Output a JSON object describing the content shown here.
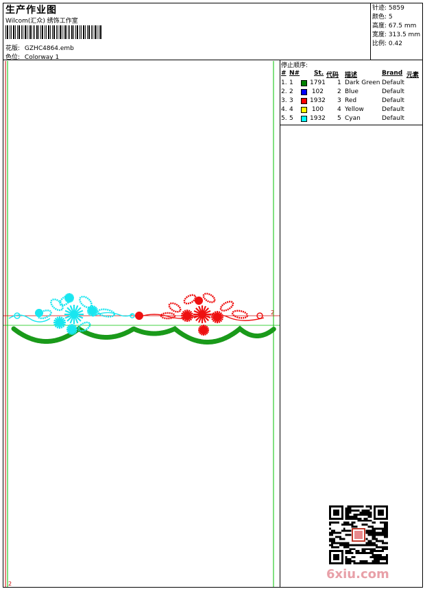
{
  "header": {
    "title": "生产作业图",
    "subtitle": "Wilcom(汇众) 绣饰工作室",
    "design_label": "花版:",
    "design_value": "GZHC4864.emb",
    "colorway_label": "色位:",
    "colorway_value": "Colorway 1"
  },
  "stats": [
    {
      "label": "针迹:",
      "value": "5859"
    },
    {
      "label": "颜色:",
      "value": "5"
    },
    {
      "label": "高度:",
      "value": "67.5 mm"
    },
    {
      "label": "宽度:",
      "value": "313.5 mm"
    },
    {
      "label": "比例:",
      "value": "0.42"
    }
  ],
  "stop_sequence": {
    "caption": "停止顺序:",
    "columns": [
      "#",
      "N#",
      "St.",
      "代码",
      "描述",
      "Brand",
      "元素"
    ],
    "rows": [
      {
        "idx": "1.",
        "n": "1",
        "color": "#008000",
        "st": "1791",
        "code": "1",
        "desc": "Dark Green",
        "brand": "Default"
      },
      {
        "idx": "2.",
        "n": "2",
        "color": "#0000ff",
        "st": "102",
        "code": "2",
        "desc": "Blue",
        "brand": "Default"
      },
      {
        "idx": "3.",
        "n": "3",
        "color": "#ff0000",
        "st": "1932",
        "code": "3",
        "desc": "Red",
        "brand": "Default"
      },
      {
        "idx": "4.",
        "n": "4",
        "color": "#ffff00",
        "st": "100",
        "code": "4",
        "desc": "Yellow",
        "brand": "Default"
      },
      {
        "idx": "5.",
        "n": "5",
        "color": "#00ffff",
        "st": "1932",
        "code": "5",
        "desc": "Cyan",
        "brand": "Default"
      }
    ]
  },
  "canvas": {
    "marker_top": "2",
    "marker_bottom": "2",
    "guide_colors": {
      "red": "#d00000",
      "green": "#00c000"
    },
    "design_colors": {
      "scallop": "#1a9a1a",
      "left_motif": "#19e6f0",
      "right_motif": "#ee1111"
    }
  },
  "watermark": "6xiu.com"
}
